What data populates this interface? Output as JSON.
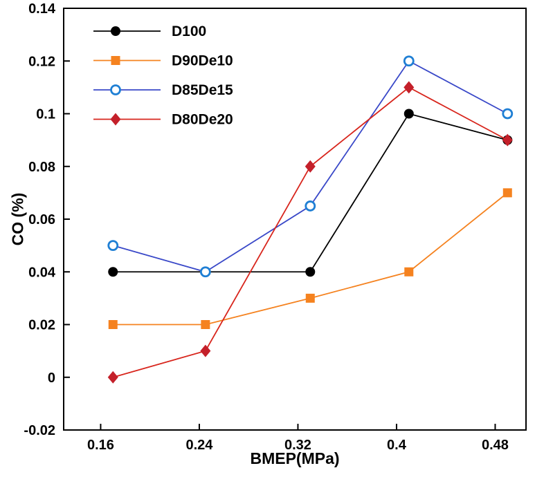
{
  "chart_data": {
    "type": "line",
    "title": "",
    "xlabel": "BMEP(MPa)",
    "ylabel": "CO (%)",
    "xlim": [
      0.13,
      0.505
    ],
    "ylim": [
      -0.02,
      0.14
    ],
    "grid": false,
    "legend_position": "top-left",
    "xticks": [
      0.16,
      0.24,
      0.32,
      0.4,
      0.48
    ],
    "xtick_labels": [
      "0.16",
      "0.24",
      "0.32",
      "0.4",
      "0.48"
    ],
    "yticks": [
      -0.02,
      0,
      0.02,
      0.04,
      0.06,
      0.08,
      0.1,
      0.12,
      0.14
    ],
    "ytick_labels": [
      "-0.02",
      "0",
      "0.02",
      "0.04",
      "0.06",
      "0.08",
      "0.1",
      "0.12",
      "0.14"
    ],
    "x": [
      0.17,
      0.245,
      0.33,
      0.41,
      0.49
    ],
    "series": [
      {
        "name": "D100",
        "marker": "circle-filled",
        "color": "#000000",
        "marker_color": "#000000",
        "values": [
          0.04,
          0.04,
          0.04,
          0.1,
          0.09
        ]
      },
      {
        "name": "D90De10",
        "marker": "square-filled",
        "color": "#F5821F",
        "marker_color": "#F5821F",
        "values": [
          0.02,
          0.02,
          0.03,
          0.04,
          0.07
        ]
      },
      {
        "name": "D85De15",
        "marker": "circle-open",
        "color": "#3948C8",
        "marker_color": "#1F7FD4",
        "values": [
          0.05,
          0.04,
          0.065,
          0.12,
          0.1
        ]
      },
      {
        "name": "D80De20",
        "marker": "diamond-filled",
        "color": "#D8251C",
        "marker_color": "#C4202A",
        "values": [
          0.0,
          0.01,
          0.08,
          0.11,
          0.09
        ]
      }
    ]
  }
}
